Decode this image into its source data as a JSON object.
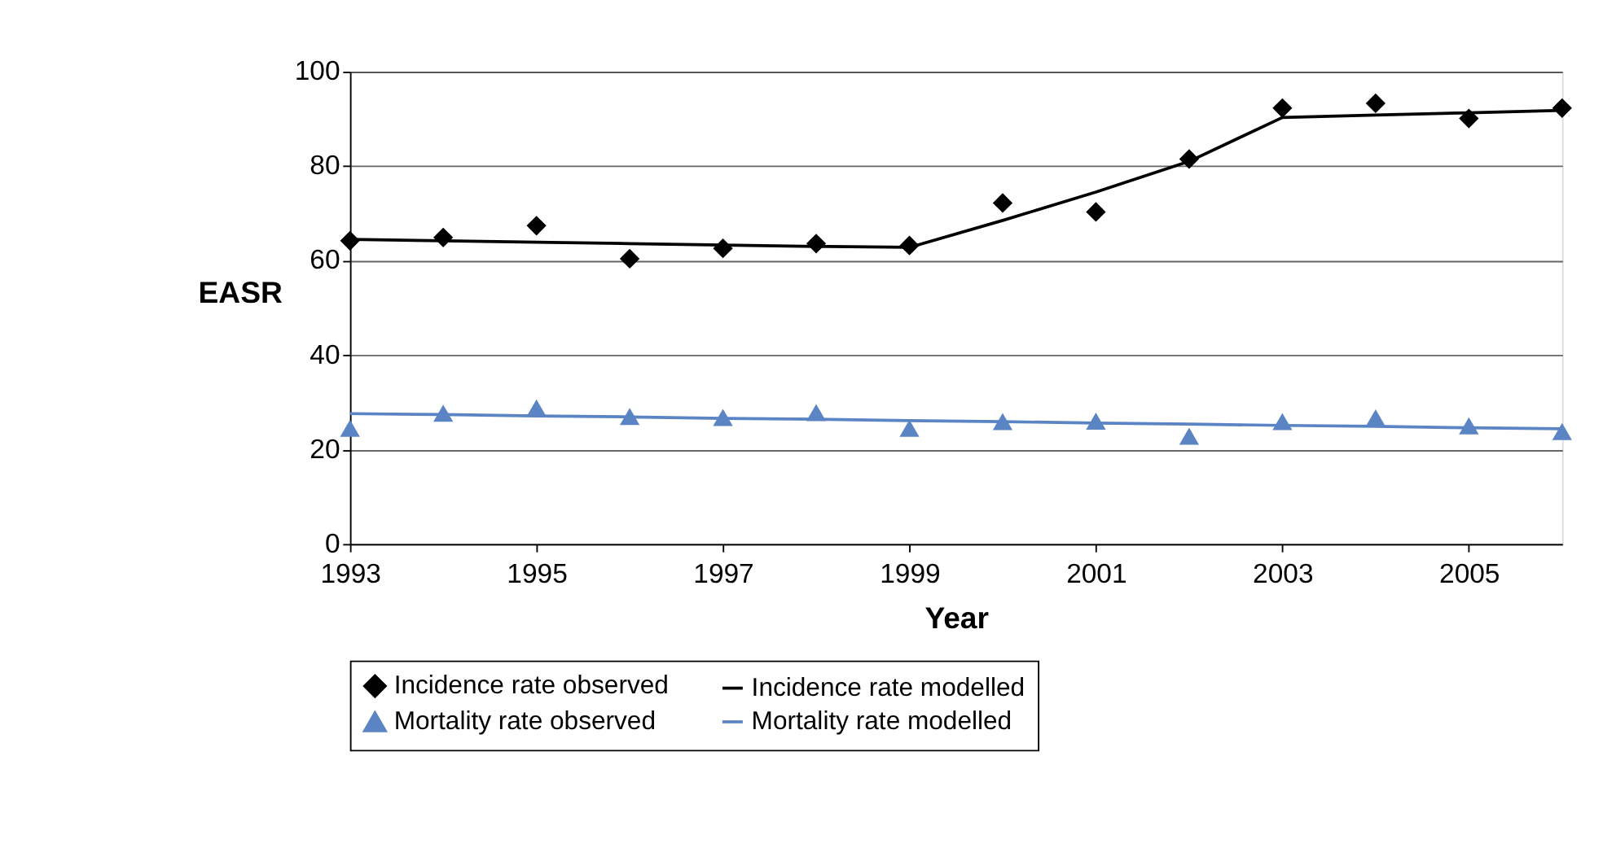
{
  "chart_data": {
    "type": "line",
    "xlabel": "Year",
    "ylabel": "EASR",
    "x": [
      1993,
      1994,
      1995,
      1996,
      1997,
      1998,
      1999,
      2000,
      2001,
      2002,
      2003,
      2004,
      2005,
      2006
    ],
    "xlim": [
      1993,
      2006
    ],
    "xticks": [
      1993,
      1995,
      1997,
      1999,
      2001,
      2003,
      2005
    ],
    "ylim": [
      0,
      100
    ],
    "yticks": [
      0,
      20,
      40,
      60,
      80,
      100
    ],
    "grid": "y",
    "legend": "bottom",
    "series": [
      {
        "name": "Incidence rate observed",
        "type": "scatter",
        "marker": "diamond",
        "color": "#000000",
        "values": [
          64.2,
          64.9,
          67.4,
          60.4,
          62.6,
          63.6,
          63.2,
          72.2,
          70.3,
          81.5,
          92.3,
          93.3,
          90.1,
          92.3
        ]
      },
      {
        "name": "Incidence rate modelled",
        "type": "line",
        "line_style": "solid",
        "color": "#000000",
        "values": [
          64.5,
          64.2,
          63.9,
          63.6,
          63.3,
          63.0,
          62.8,
          68.5,
          74.5,
          81.0,
          90.3,
          90.8,
          91.3,
          91.8
        ]
      },
      {
        "name": "Mortality rate observed",
        "type": "scatter",
        "marker": "triangle",
        "color": "#5b84c4",
        "values": [
          24.5,
          27.7,
          28.8,
          27.0,
          26.8,
          27.8,
          24.5,
          25.9,
          26.0,
          22.8,
          25.9,
          26.7,
          25.0,
          23.8
        ]
      },
      {
        "name": "Mortality rate modelled",
        "type": "line",
        "line_style": "solid",
        "color": "#5b84c4",
        "values": [
          27.6,
          27.4,
          27.1,
          26.9,
          26.6,
          26.4,
          26.1,
          25.9,
          25.6,
          25.4,
          25.1,
          24.9,
          24.6,
          24.4
        ]
      }
    ]
  }
}
